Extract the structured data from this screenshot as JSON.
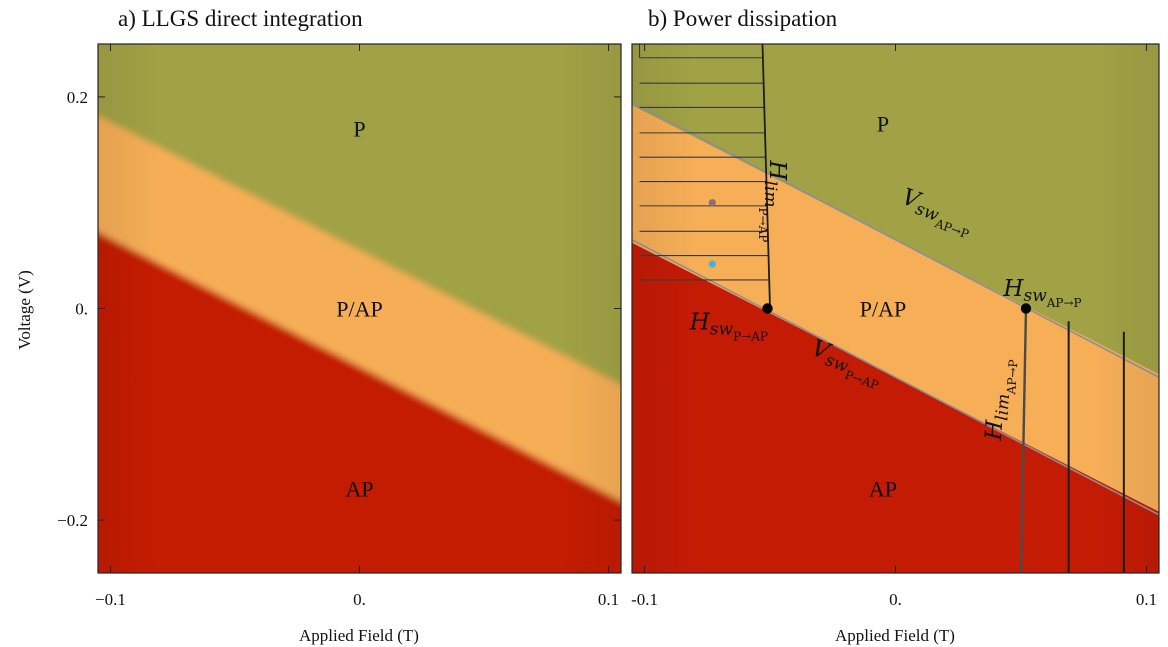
{
  "chart_data": [
    {
      "type": "area",
      "title": "a) LLGS direct integration",
      "xlabel": "Applied Field (T)",
      "ylabel": "Voltage (V)",
      "xlim": [
        -0.105,
        0.105
      ],
      "ylim": [
        -0.25,
        0.25
      ],
      "xticks": [
        -0.1,
        0.0,
        0.1
      ],
      "xtick_labels": [
        "−0.1",
        "0.",
        "0.1"
      ],
      "yticks": [
        -0.2,
        0.0,
        0.2
      ],
      "ytick_labels": [
        "−0.2",
        "0.",
        "0.2"
      ],
      "colors": {
        "P": "#a1a245",
        "P/AP": "#f6ae57",
        "AP": "#c41b05"
      },
      "boundaries": [
        {
          "between": "P/AP-P",
          "x": [
            -0.105,
            0.105
          ],
          "y": [
            0.185,
            -0.075
          ]
        },
        {
          "between": "AP-P/AP",
          "x": [
            -0.105,
            0.105
          ],
          "y": [
            0.075,
            -0.185
          ]
        }
      ],
      "regions": [
        {
          "label": "P",
          "x": 0.0,
          "y": 0.17
        },
        {
          "label": "P/AP",
          "x": 0.0,
          "y": 0.0
        },
        {
          "label": "AP",
          "x": 0.0,
          "y": -0.17
        }
      ]
    },
    {
      "type": "area",
      "title": "b) Power dissipation",
      "xlabel": "Applied Field (T)",
      "ylabel": "",
      "xlim": [
        -0.105,
        0.105
      ],
      "ylim": [
        -0.25,
        0.25
      ],
      "xticks": [
        -0.1,
        0.0,
        0.1
      ],
      "xtick_labels": [
        "-0.1",
        "0.",
        "0.1"
      ],
      "colors": {
        "P": "#a1a245",
        "P/AP": "#f6ae57",
        "AP": "#c41b05"
      },
      "boundaries": [
        {
          "between": "P/AP-P",
          "x": [
            -0.105,
            0.105
          ],
          "y": [
            0.195,
            -0.065
          ]
        },
        {
          "between": "AP-P/AP",
          "x": [
            -0.105,
            0.105
          ],
          "y": [
            0.065,
            -0.195
          ]
        }
      ],
      "regions": [
        {
          "label": "P",
          "x": -0.005,
          "y": 0.175
        },
        {
          "label": "P/AP",
          "x": -0.005,
          "y": 0.0
        },
        {
          "label": "AP",
          "x": -0.005,
          "y": -0.17
        }
      ],
      "switching_points": [
        {
          "x": -0.051,
          "y": 0.0
        },
        {
          "x": 0.052,
          "y": 0.0
        }
      ],
      "hatch_lines_y": [
        0.237,
        0.213,
        0.19,
        0.166,
        0.143,
        0.12,
        0.097,
        0.073,
        0.05,
        0.027
      ],
      "hatch_x_start": -0.102,
      "limit_line_left": {
        "x": [
          -0.05,
          -0.053
        ],
        "y": [
          0.0,
          0.25
        ]
      },
      "limit_line_right": {
        "x": [
          0.052,
          0.05
        ],
        "y": [
          0.0,
          -0.25
        ]
      },
      "vertical_lines_right": [
        {
          "x": [
            0.069,
            0.069
          ],
          "y": [
            -0.012,
            -0.25
          ]
        },
        {
          "x": [
            0.091,
            0.091
          ],
          "y": [
            -0.022,
            -0.25
          ]
        }
      ],
      "markers": [
        {
          "x": -0.073,
          "y": 0.1,
          "color": "#8c6f73"
        },
        {
          "x": -0.073,
          "y": 0.042,
          "color": "#3fb5e0"
        }
      ],
      "annotations": [
        {
          "base": "H",
          "sub": "lim",
          "subsub": "P→AP",
          "x": -0.05,
          "y": 0.14,
          "rotate": 90
        },
        {
          "base": "V",
          "sub": "sw",
          "subsub": "AP→P",
          "x": 0.002,
          "y": 0.1,
          "rotate": 20
        },
        {
          "base": "H",
          "sub": "sw",
          "subsub": "AP→P",
          "x": 0.043,
          "y": 0.012,
          "rotate": 0
        },
        {
          "base": "H",
          "sub": "sw",
          "subsub": "P→AP",
          "x": -0.082,
          "y": -0.02,
          "rotate": 0
        },
        {
          "base": "V",
          "sub": "sw",
          "subsub": "P→AP",
          "x": -0.034,
          "y": -0.043,
          "rotate": 20
        },
        {
          "base": "H",
          "sub": "lim",
          "subsub": "AP→P",
          "x": 0.042,
          "y": -0.125,
          "rotate": -86
        }
      ]
    }
  ]
}
